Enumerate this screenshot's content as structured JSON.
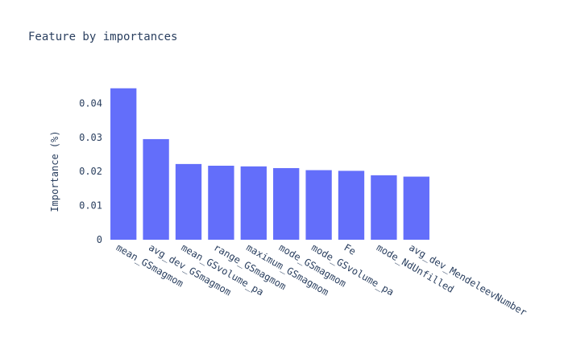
{
  "chart_data": {
    "type": "bar",
    "title": "Feature by importances",
    "xlabel": "",
    "ylabel": "Importance (%)",
    "categories": [
      "mean_GSmagmom",
      "avg_dev_GSmagmom",
      "mean_GSvolume_pa",
      "range_GSmagmom",
      "maximum_GSmagmom",
      "mode_GSmagmom",
      "mode_GSvolume_pa",
      "Fe",
      "mode_NdUnfilled",
      "avg_dev_MendeleevNumber"
    ],
    "values": [
      0.0444,
      0.0295,
      0.0222,
      0.0217,
      0.0215,
      0.021,
      0.0204,
      0.0202,
      0.0189,
      0.0185
    ],
    "yticks": [
      0,
      0.01,
      0.02,
      0.03,
      0.04
    ],
    "ytick_labels": [
      "0",
      "0.01",
      "0.02",
      "0.03",
      "0.04"
    ],
    "ylim": [
      0,
      0.0467
    ],
    "bar_color": "#636efa",
    "grid": false,
    "legend": "none"
  }
}
